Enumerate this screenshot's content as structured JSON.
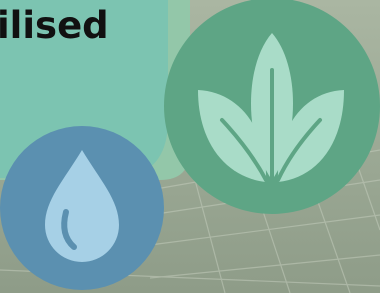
{
  "headline": "ilised"
}
